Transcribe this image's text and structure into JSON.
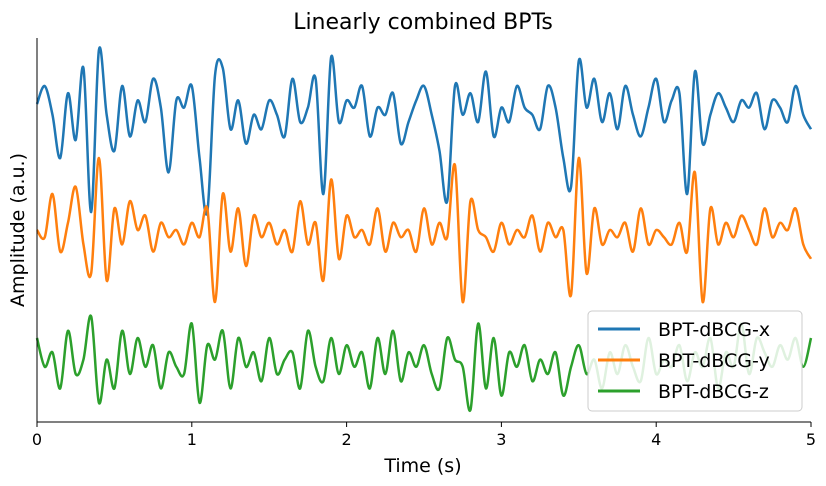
{
  "chart_data": {
    "type": "line",
    "title": "Linearly combined BPTs",
    "xlabel": "Time (s)",
    "ylabel": "Amplitude (a.u.)",
    "xlim": [
      0,
      5
    ],
    "xticks": [
      "0",
      "1",
      "2",
      "3",
      "4",
      "5"
    ],
    "yticks_shown": false,
    "grid": false,
    "legend_position": "lower-right",
    "series": [
      {
        "name": "BPT-dBCG-x",
        "color": "#1f77b4",
        "x": [
          0.0,
          0.05,
          0.1,
          0.15,
          0.2,
          0.25,
          0.3,
          0.35,
          0.4,
          0.45,
          0.5,
          0.55,
          0.6,
          0.65,
          0.7,
          0.75,
          0.8,
          0.85,
          0.9,
          0.95,
          1.0,
          1.05,
          1.1,
          1.15,
          1.2,
          1.25,
          1.3,
          1.35,
          1.4,
          1.45,
          1.5,
          1.55,
          1.6,
          1.65,
          1.7,
          1.75,
          1.8,
          1.85,
          1.9,
          1.95,
          2.0,
          2.05,
          2.1,
          2.15,
          2.2,
          2.25,
          2.3,
          2.35,
          2.4,
          2.45,
          2.5,
          2.55,
          2.6,
          2.65,
          2.7,
          2.75,
          2.8,
          2.85,
          2.9,
          2.95,
          3.0,
          3.05,
          3.1,
          3.15,
          3.2,
          3.25,
          3.3,
          3.35,
          3.4,
          3.45,
          3.5,
          3.55,
          3.6,
          3.65,
          3.7,
          3.75,
          3.8,
          3.85,
          3.9,
          3.95,
          4.0,
          4.05,
          4.1,
          4.15,
          4.2,
          4.25,
          4.3,
          4.35,
          4.4,
          4.45,
          4.5,
          4.55,
          4.6,
          4.65,
          4.7,
          4.75,
          4.8,
          4.85,
          4.9,
          4.95,
          5.0
        ],
        "y": [
          0.85,
          0.9,
          0.82,
          0.7,
          0.88,
          0.75,
          0.95,
          0.55,
          1.0,
          0.82,
          0.72,
          0.9,
          0.76,
          0.86,
          0.8,
          0.92,
          0.84,
          0.66,
          0.86,
          0.84,
          0.9,
          0.7,
          0.55,
          0.93,
          0.95,
          0.78,
          0.86,
          0.74,
          0.82,
          0.78,
          0.86,
          0.82,
          0.76,
          0.92,
          0.8,
          0.84,
          0.92,
          0.6,
          0.98,
          0.8,
          0.86,
          0.84,
          0.9,
          0.76,
          0.84,
          0.82,
          0.88,
          0.74,
          0.8,
          0.86,
          0.9,
          0.82,
          0.72,
          0.58,
          0.9,
          0.82,
          0.88,
          0.8,
          0.94,
          0.76,
          0.84,
          0.8,
          0.9,
          0.84,
          0.82,
          0.78,
          0.9,
          0.84,
          0.7,
          0.62,
          0.97,
          0.84,
          0.92,
          0.8,
          0.88,
          0.78,
          0.9,
          0.82,
          0.76,
          0.84,
          0.92,
          0.8,
          0.86,
          0.88,
          0.6,
          0.94,
          0.74,
          0.82,
          0.88,
          0.84,
          0.8,
          0.86,
          0.84,
          0.88,
          0.78,
          0.86,
          0.84,
          0.8,
          0.9,
          0.82,
          0.78
        ]
      },
      {
        "name": "BPT-dBCG-y",
        "color": "#ff7f0e",
        "x": [
          0.0,
          0.05,
          0.1,
          0.15,
          0.2,
          0.25,
          0.3,
          0.35,
          0.4,
          0.45,
          0.5,
          0.55,
          0.6,
          0.65,
          0.7,
          0.75,
          0.8,
          0.85,
          0.9,
          0.95,
          1.0,
          1.05,
          1.1,
          1.15,
          1.2,
          1.25,
          1.3,
          1.35,
          1.4,
          1.45,
          1.5,
          1.55,
          1.6,
          1.65,
          1.7,
          1.75,
          1.8,
          1.85,
          1.9,
          1.95,
          2.0,
          2.05,
          2.1,
          2.15,
          2.2,
          2.25,
          2.3,
          2.35,
          2.4,
          2.45,
          2.5,
          2.55,
          2.6,
          2.65,
          2.7,
          2.75,
          2.8,
          2.85,
          2.9,
          2.95,
          3.0,
          3.05,
          3.1,
          3.15,
          3.2,
          3.25,
          3.3,
          3.35,
          3.4,
          3.45,
          3.5,
          3.55,
          3.6,
          3.65,
          3.7,
          3.75,
          3.8,
          3.85,
          3.9,
          3.95,
          4.0,
          4.05,
          4.1,
          4.15,
          4.2,
          4.25,
          4.3,
          4.35,
          4.4,
          4.45,
          4.5,
          4.55,
          4.6,
          4.65,
          4.7,
          4.75,
          4.8,
          4.85,
          4.9,
          4.95,
          5.0
        ],
        "y": [
          0.5,
          0.48,
          0.6,
          0.44,
          0.52,
          0.62,
          0.46,
          0.38,
          0.7,
          0.36,
          0.56,
          0.46,
          0.58,
          0.5,
          0.54,
          0.44,
          0.52,
          0.48,
          0.5,
          0.46,
          0.52,
          0.48,
          0.56,
          0.3,
          0.6,
          0.44,
          0.56,
          0.4,
          0.54,
          0.48,
          0.52,
          0.46,
          0.5,
          0.44,
          0.58,
          0.46,
          0.52,
          0.36,
          0.64,
          0.42,
          0.54,
          0.48,
          0.5,
          0.46,
          0.56,
          0.44,
          0.52,
          0.48,
          0.5,
          0.44,
          0.56,
          0.46,
          0.52,
          0.48,
          0.68,
          0.3,
          0.58,
          0.5,
          0.48,
          0.44,
          0.52,
          0.46,
          0.5,
          0.48,
          0.54,
          0.44,
          0.52,
          0.48,
          0.5,
          0.32,
          0.7,
          0.38,
          0.56,
          0.46,
          0.5,
          0.48,
          0.52,
          0.44,
          0.56,
          0.46,
          0.5,
          0.48,
          0.46,
          0.52,
          0.44,
          0.66,
          0.3,
          0.56,
          0.46,
          0.52,
          0.48,
          0.54,
          0.5,
          0.46,
          0.56,
          0.48,
          0.52,
          0.5,
          0.56,
          0.46,
          0.42
        ]
      },
      {
        "name": "BPT-dBCG-z",
        "color": "#2ca02c",
        "x": [
          0.0,
          0.05,
          0.1,
          0.15,
          0.2,
          0.25,
          0.3,
          0.35,
          0.4,
          0.45,
          0.5,
          0.55,
          0.6,
          0.65,
          0.7,
          0.75,
          0.8,
          0.85,
          0.9,
          0.95,
          1.0,
          1.05,
          1.1,
          1.15,
          1.2,
          1.25,
          1.3,
          1.35,
          1.4,
          1.45,
          1.5,
          1.55,
          1.6,
          1.65,
          1.7,
          1.75,
          1.8,
          1.85,
          1.9,
          1.95,
          2.0,
          2.05,
          2.1,
          2.15,
          2.2,
          2.25,
          2.3,
          2.35,
          2.4,
          2.45,
          2.5,
          2.55,
          2.6,
          2.65,
          2.7,
          2.75,
          2.8,
          2.85,
          2.9,
          2.95,
          3.0,
          3.05,
          3.1,
          3.15,
          3.2,
          3.25,
          3.3,
          3.35,
          3.4,
          3.45,
          3.5,
          3.55,
          3.6,
          3.65,
          3.7,
          3.75,
          3.8,
          3.85,
          3.9,
          3.95,
          4.0,
          4.05,
          4.1,
          4.15,
          4.2,
          4.25,
          4.3,
          4.35,
          4.4,
          4.45,
          4.5,
          4.55,
          4.6,
          4.65,
          4.7,
          4.75,
          4.8,
          4.85,
          4.9,
          4.95,
          5.0
        ],
        "y": [
          0.2,
          0.12,
          0.16,
          0.06,
          0.22,
          0.1,
          0.14,
          0.26,
          0.02,
          0.14,
          0.06,
          0.22,
          0.1,
          0.2,
          0.12,
          0.18,
          0.06,
          0.16,
          0.12,
          0.1,
          0.24,
          0.02,
          0.18,
          0.14,
          0.22,
          0.06,
          0.2,
          0.12,
          0.16,
          0.08,
          0.2,
          0.1,
          0.14,
          0.16,
          0.06,
          0.22,
          0.12,
          0.08,
          0.2,
          0.1,
          0.18,
          0.12,
          0.16,
          0.06,
          0.2,
          0.1,
          0.22,
          0.08,
          0.16,
          0.12,
          0.18,
          0.1,
          0.06,
          0.2,
          0.14,
          0.12,
          0.0,
          0.24,
          0.06,
          0.2,
          0.04,
          0.16,
          0.12,
          0.18,
          0.08,
          0.14,
          0.1,
          0.16,
          0.04,
          0.12,
          0.18,
          0.1,
          0.14,
          0.06,
          0.16,
          0.1,
          0.18,
          0.12,
          0.08,
          0.2,
          0.1,
          0.14,
          0.12,
          0.18,
          0.08,
          0.16,
          0.12,
          0.2,
          0.06,
          0.16,
          0.12,
          0.24,
          0.1,
          0.2,
          0.16,
          0.12,
          0.18,
          0.14,
          0.2,
          0.12,
          0.2
        ]
      }
    ]
  }
}
